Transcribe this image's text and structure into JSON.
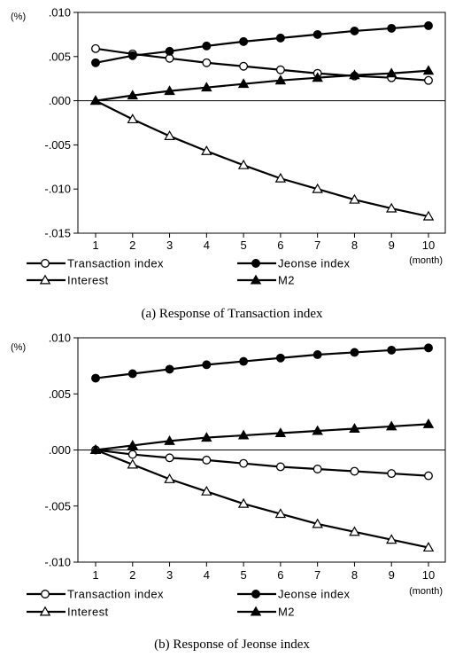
{
  "chart_data": [
    {
      "type": "line",
      "title": "",
      "caption": "(a)  Response  of  Transaction  index",
      "y_unit": "(%)",
      "x_unit": "(month)",
      "x": [
        1,
        2,
        3,
        4,
        5,
        6,
        7,
        8,
        9,
        10
      ],
      "ylim": [
        -0.015,
        0.01
      ],
      "yticks": [
        0.01,
        0.005,
        0.0,
        -0.005,
        -0.01,
        -0.015
      ],
      "ytick_labels": [
        ".010",
        ".005",
        ".000",
        "-.005",
        "-.010",
        "-.015"
      ],
      "series": [
        {
          "name": "Transaction index",
          "marker": "open-circle",
          "values": [
            0.0059,
            0.0053,
            0.0048,
            0.0043,
            0.0039,
            0.0035,
            0.0031,
            0.0028,
            0.0026,
            0.0023
          ]
        },
        {
          "name": "Jeonse index",
          "marker": "filled-circle",
          "values": [
            0.0043,
            0.0051,
            0.0056,
            0.0062,
            0.0067,
            0.0071,
            0.0075,
            0.0079,
            0.0082,
            0.0085
          ]
        },
        {
          "name": "Interest",
          "marker": "open-triangle",
          "values": [
            0.0,
            -0.0021,
            -0.004,
            -0.0057,
            -0.0073,
            -0.0088,
            -0.01,
            -0.0112,
            -0.0122,
            -0.0131
          ]
        },
        {
          "name": "M2",
          "marker": "filled-triangle",
          "values": [
            0.0,
            0.0006,
            0.0011,
            0.0015,
            0.0019,
            0.0023,
            0.0026,
            0.0029,
            0.0031,
            0.0034
          ]
        }
      ],
      "legend": "bottom"
    },
    {
      "type": "line",
      "title": "",
      "caption": "(b)  Response  of  Jeonse  index",
      "y_unit": "(%)",
      "x_unit": "(month)",
      "x": [
        1,
        2,
        3,
        4,
        5,
        6,
        7,
        8,
        9,
        10
      ],
      "ylim": [
        -0.01,
        0.01
      ],
      "yticks": [
        0.01,
        0.005,
        0.0,
        -0.005,
        -0.01
      ],
      "ytick_labels": [
        ".010",
        ".005",
        ".000",
        "-.005",
        "-.010"
      ],
      "series": [
        {
          "name": "Transaction index",
          "marker": "open-circle",
          "values": [
            0.0,
            -0.0004,
            -0.0007,
            -0.0009,
            -0.0012,
            -0.0015,
            -0.0017,
            -0.0019,
            -0.0021,
            -0.0023
          ]
        },
        {
          "name": "Jeonse index",
          "marker": "filled-circle",
          "values": [
            0.0064,
            0.0068,
            0.0072,
            0.0076,
            0.0079,
            0.0082,
            0.0085,
            0.0087,
            0.0089,
            0.0091
          ]
        },
        {
          "name": "Interest",
          "marker": "open-triangle",
          "values": [
            0.0,
            -0.0013,
            -0.0026,
            -0.0037,
            -0.0048,
            -0.0057,
            -0.0066,
            -0.0073,
            -0.008,
            -0.0087
          ]
        },
        {
          "name": "M2",
          "marker": "filled-triangle",
          "values": [
            0.0,
            0.0004,
            0.0008,
            0.0011,
            0.0013,
            0.0015,
            0.0017,
            0.0019,
            0.0021,
            0.0023
          ]
        }
      ],
      "legend": "bottom"
    }
  ]
}
